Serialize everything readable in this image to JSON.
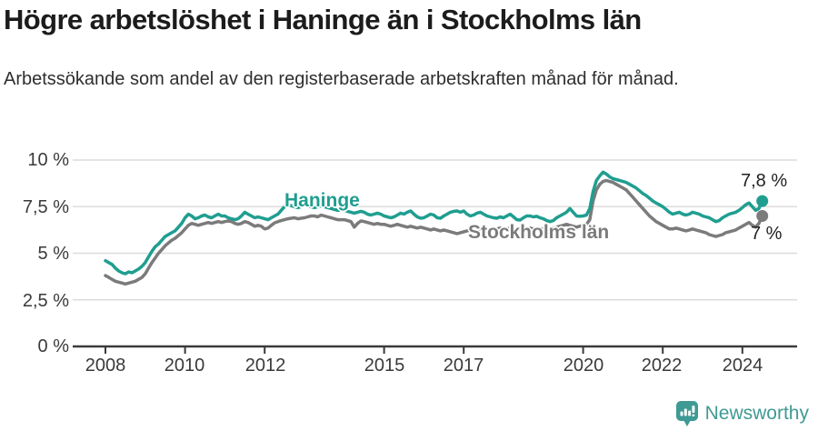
{
  "title": "Högre arbetslöshet i Haninge än i Stockholms län",
  "subtitle": "Arbetssökande som andel av den registerbaserade arbetskraften månad för månad.",
  "footer": {
    "brand": "Newsworthy"
  },
  "colors": {
    "haninge": "#1f9e90",
    "stockholm": "#7b7b7b",
    "grid": "#dcdcdc",
    "axis": "#3a3a3a",
    "value_label": "#222222",
    "brand": "#3f9a94"
  },
  "chart_data": {
    "type": "line",
    "title": "Högre arbetslöshet i Haninge än i Stockholms län",
    "subtitle": "Arbetssökande som andel av den registerbaserade arbetskraften månad för månad.",
    "x_unit": "month",
    "x_start": "2008-01",
    "x_end": "2024-07",
    "ylim": [
      0,
      10
    ],
    "grid": true,
    "legend_position": "inline-on-line",
    "ytick_values": [
      10,
      7.5,
      5,
      2.5,
      0
    ],
    "ytick_labels": [
      "10 %",
      "7,5 %",
      "5 %",
      "2,5 %",
      "0 %"
    ],
    "xtick_values": [
      2008,
      2010,
      2012,
      2015,
      2017,
      2020,
      2022,
      2024
    ],
    "xtick_labels": [
      "2008",
      "2010",
      "2012",
      "2015",
      "2017",
      "2020",
      "2022",
      "2024"
    ],
    "series": [
      {
        "name": "Stockholms län",
        "color": "#7b7b7b",
        "end_label": "7 %",
        "end_value": 7.0,
        "values": [
          3.8,
          3.7,
          3.6,
          3.5,
          3.45,
          3.4,
          3.35,
          3.4,
          3.45,
          3.5,
          3.6,
          3.7,
          3.9,
          4.2,
          4.5,
          4.75,
          5.0,
          5.2,
          5.4,
          5.55,
          5.7,
          5.8,
          5.95,
          6.1,
          6.3,
          6.5,
          6.6,
          6.55,
          6.5,
          6.55,
          6.6,
          6.65,
          6.6,
          6.65,
          6.7,
          6.65,
          6.7,
          6.73,
          6.7,
          6.6,
          6.55,
          6.6,
          6.7,
          6.65,
          6.55,
          6.45,
          6.5,
          6.45,
          6.3,
          6.35,
          6.5,
          6.63,
          6.7,
          6.75,
          6.8,
          6.85,
          6.88,
          6.9,
          6.85,
          6.88,
          6.9,
          6.95,
          7.0,
          7.0,
          6.95,
          7.05,
          7.0,
          6.95,
          6.9,
          6.85,
          6.8,
          6.8,
          6.8,
          6.75,
          6.7,
          6.4,
          6.6,
          6.73,
          6.7,
          6.65,
          6.6,
          6.55,
          6.6,
          6.55,
          6.55,
          6.5,
          6.45,
          6.5,
          6.55,
          6.5,
          6.45,
          6.4,
          6.45,
          6.4,
          6.35,
          6.4,
          6.35,
          6.3,
          6.25,
          6.3,
          6.25,
          6.2,
          6.25,
          6.2,
          6.15,
          6.1,
          6.05,
          6.1,
          6.15,
          6.2,
          6.25,
          6.2,
          6.25,
          6.3,
          6.25,
          6.2,
          6.25,
          6.3,
          6.3,
          6.35,
          6.3,
          6.3,
          6.35,
          6.3,
          6.25,
          6.3,
          6.35,
          6.3,
          6.35,
          6.3,
          6.35,
          6.3,
          6.3,
          6.25,
          6.3,
          6.35,
          6.4,
          6.45,
          6.5,
          6.55,
          6.5,
          6.45,
          6.4,
          6.45,
          6.5,
          6.55,
          6.8,
          7.8,
          8.4,
          8.7,
          8.85,
          8.9,
          8.85,
          8.8,
          8.7,
          8.6,
          8.5,
          8.4,
          8.2,
          8.0,
          7.8,
          7.6,
          7.4,
          7.2,
          7.0,
          6.85,
          6.7,
          6.6,
          6.5,
          6.4,
          6.3,
          6.3,
          6.35,
          6.3,
          6.25,
          6.2,
          6.25,
          6.3,
          6.25,
          6.2,
          6.15,
          6.1,
          6.0,
          5.95,
          5.9,
          5.95,
          6.0,
          6.1,
          6.15,
          6.2,
          6.25,
          6.35,
          6.45,
          6.55,
          6.65,
          6.5,
          6.4,
          6.6,
          7.0
        ]
      },
      {
        "name": "Haninge",
        "color": "#1f9e90",
        "end_label": "7,8 %",
        "end_value": 7.8,
        "values": [
          4.6,
          4.5,
          4.4,
          4.2,
          4.05,
          3.95,
          3.9,
          4.0,
          3.95,
          4.05,
          4.15,
          4.3,
          4.5,
          4.8,
          5.1,
          5.35,
          5.5,
          5.7,
          5.9,
          6.0,
          6.1,
          6.2,
          6.4,
          6.6,
          6.9,
          7.1,
          7.0,
          6.85,
          6.9,
          7.0,
          7.05,
          6.95,
          6.9,
          7.0,
          7.1,
          7.0,
          7.0,
          6.9,
          6.85,
          6.8,
          6.85,
          7.0,
          7.2,
          7.1,
          7.0,
          6.9,
          6.95,
          6.9,
          6.85,
          6.8,
          6.9,
          7.0,
          7.1,
          7.3,
          7.5,
          7.6,
          7.55,
          7.5,
          7.45,
          7.5,
          7.6,
          7.55,
          7.5,
          7.45,
          7.5,
          7.55,
          7.5,
          7.45,
          7.4,
          7.35,
          7.3,
          7.3,
          7.3,
          7.25,
          7.2,
          7.15,
          7.2,
          7.25,
          7.2,
          7.1,
          7.05,
          7.1,
          7.15,
          7.1,
          7.0,
          6.95,
          6.9,
          6.95,
          7.05,
          7.15,
          7.1,
          7.2,
          7.27,
          7.1,
          6.95,
          6.88,
          6.9,
          7.0,
          7.1,
          7.05,
          6.9,
          6.88,
          7.0,
          7.1,
          7.2,
          7.25,
          7.27,
          7.2,
          7.27,
          7.1,
          7.0,
          7.05,
          7.15,
          7.2,
          7.1,
          7.0,
          6.95,
          6.9,
          6.88,
          6.95,
          6.9,
          7.0,
          7.1,
          6.95,
          6.8,
          6.78,
          6.9,
          7.0,
          7.0,
          6.95,
          6.98,
          6.9,
          6.85,
          6.75,
          6.7,
          6.75,
          6.9,
          7.0,
          7.1,
          7.2,
          7.4,
          7.2,
          7.0,
          6.98,
          7.0,
          7.05,
          7.4,
          8.3,
          8.9,
          9.15,
          9.35,
          9.25,
          9.1,
          9.0,
          8.95,
          8.9,
          8.85,
          8.8,
          8.7,
          8.6,
          8.5,
          8.35,
          8.2,
          8.1,
          7.95,
          7.8,
          7.7,
          7.6,
          7.5,
          7.35,
          7.2,
          7.1,
          7.15,
          7.2,
          7.1,
          7.05,
          7.1,
          7.2,
          7.15,
          7.1,
          7.0,
          6.95,
          6.9,
          6.8,
          6.7,
          6.75,
          6.9,
          7.0,
          7.1,
          7.15,
          7.2,
          7.3,
          7.45,
          7.6,
          7.7,
          7.5,
          7.3,
          7.4,
          7.8
        ]
      }
    ]
  }
}
